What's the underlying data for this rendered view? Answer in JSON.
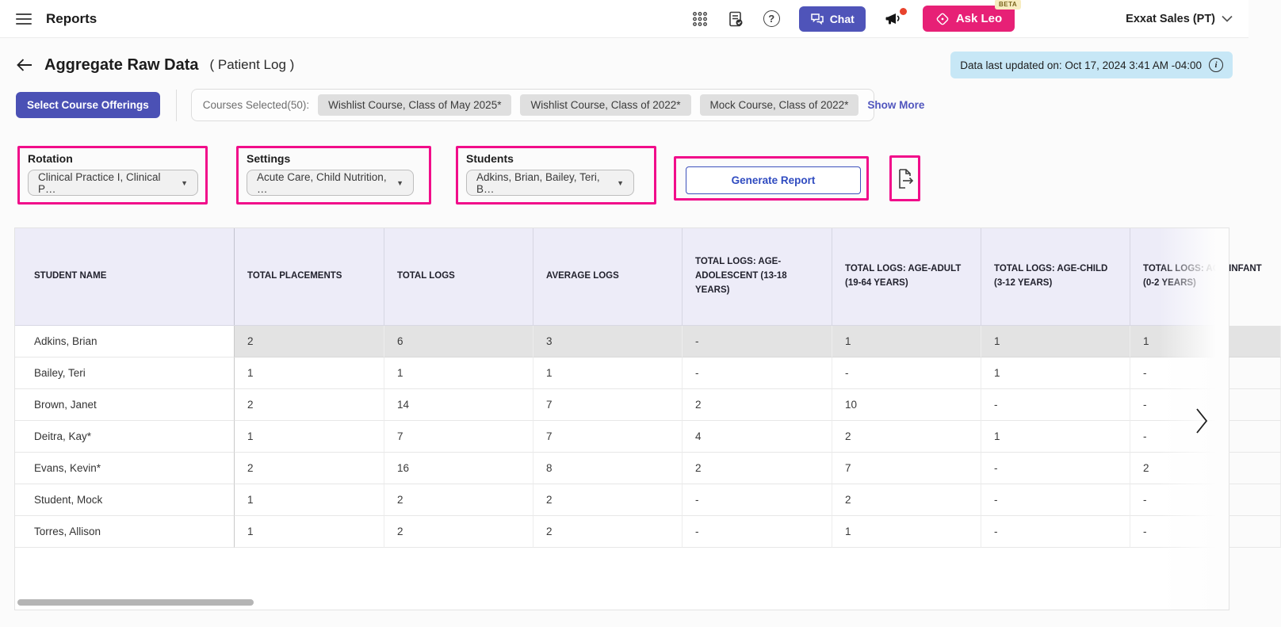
{
  "colors": {
    "indigo_accent": "#4F54B9",
    "pink_button": "#E72076",
    "annotation_pink": "#F10D8A",
    "updated_badge_bg": "#C7E7F6",
    "table_header_bg": "#EDECF8",
    "chip_bg": "#DFDFDF",
    "row_highlight_bg": "#E3E3E3",
    "link_color": "#5156BE",
    "generate_blue": "#2F4BC0",
    "notification_red": "#E8432D",
    "beta_badge_bg": "#F7ECC0"
  },
  "icons": [
    "hamburger-menu-icon",
    "apps-grid-icon",
    "report-check-icon",
    "help-icon",
    "chat-icon",
    "megaphone-icon",
    "ask-leo-icon",
    "chevron-down-icon",
    "back-arrow-icon",
    "info-icon",
    "dropdown-caret-icon",
    "export-icon",
    "chevron-right-icon"
  ],
  "topbar": {
    "title": "Reports",
    "chat_label": "Chat",
    "ask_leo_label": "Ask Leo",
    "beta_label": "BETA",
    "account_label": "Exxat Sales (PT)"
  },
  "page_header": {
    "title": "Aggregate Raw Data",
    "subtitle": "( Patient Log )",
    "last_updated": "Data last updated on: Oct 17, 2024 3:41 AM -04:00"
  },
  "course_bar": {
    "select_button_label": "Select Course Offerings",
    "selected_label": "Courses Selected(50):",
    "chips": [
      "Wishlist Course, Class of May 2025*",
      "Wishlist Course, Class of 2022*",
      "Mock Course, Class of 2022*"
    ],
    "show_more_label": "Show More"
  },
  "filters": {
    "rotation": {
      "label": "Rotation",
      "value": "Clinical Practice I, Clinical P…"
    },
    "settings": {
      "label": "Settings",
      "value": "Acute Care, Child Nutrition, …"
    },
    "students": {
      "label": "Students",
      "value": "Adkins, Brian, Bailey, Teri, B…"
    },
    "generate_button_label": "Generate Report"
  },
  "table": {
    "columns": [
      "STUDENT NAME",
      "TOTAL PLACEMENTS",
      "TOTAL LOGS",
      "AVERAGE LOGS",
      "TOTAL LOGS: AGE-ADOLESCENT (13-18 YEARS)",
      "TOTAL LOGS: AGE-ADULT (19-64 YEARS)",
      "TOTAL LOGS: AGE-CHILD (3-12 YEARS)",
      "TOTAL LOGS: AGE-INFANT (0-2 YEARS)"
    ],
    "rows": [
      {
        "name": "Adkins, Brian",
        "values": [
          "2",
          "6",
          "3",
          "-",
          "1",
          "1",
          "1"
        ],
        "highlighted": true
      },
      {
        "name": "Bailey, Teri",
        "values": [
          "1",
          "1",
          "1",
          "-",
          "-",
          "1",
          "-"
        ],
        "highlighted": false
      },
      {
        "name": "Brown, Janet",
        "values": [
          "2",
          "14",
          "7",
          "2",
          "10",
          "-",
          "-"
        ],
        "highlighted": false
      },
      {
        "name": "Deitra, Kay*",
        "values": [
          "1",
          "7",
          "7",
          "4",
          "2",
          "1",
          "-"
        ],
        "highlighted": false
      },
      {
        "name": "Evans, Kevin*",
        "values": [
          "2",
          "16",
          "8",
          "2",
          "7",
          "-",
          "2"
        ],
        "highlighted": false
      },
      {
        "name": "Student, Mock",
        "values": [
          "1",
          "2",
          "2",
          "-",
          "2",
          "-",
          "-"
        ],
        "highlighted": false
      },
      {
        "name": "Torres, Allison",
        "values": [
          "1",
          "2",
          "2",
          "-",
          "1",
          "-",
          "-"
        ],
        "highlighted": false
      }
    ]
  }
}
